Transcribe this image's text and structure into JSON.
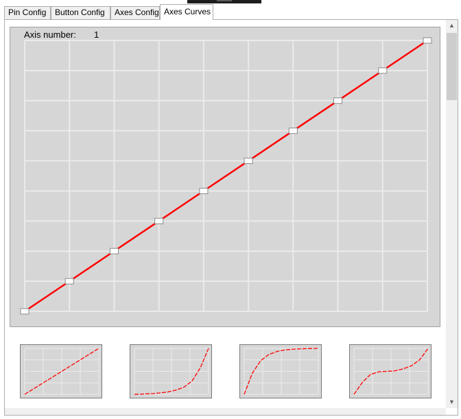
{
  "window": {
    "title": ""
  },
  "tabs": [
    {
      "label": "Pin Config",
      "active": false
    },
    {
      "label": "Button Config",
      "active": false
    },
    {
      "label": "Axes Config",
      "active": false
    },
    {
      "label": "Axes Curves",
      "active": true
    }
  ],
  "axis_info": {
    "label": "Axis number:",
    "value": "1"
  },
  "colors": {
    "curve": "#ff0000",
    "chart_background": "#d6d6d6",
    "grid": "#ebebeb",
    "handle_fill": "#ffffff",
    "panel_border": "#acacac"
  },
  "chart_data": {
    "type": "line",
    "title": "",
    "xlabel": "",
    "ylabel": "",
    "grid": true,
    "xlim": [
      0,
      9
    ],
    "ylim": [
      0,
      9
    ],
    "x": [
      0,
      1,
      2,
      3,
      4,
      5,
      6,
      7,
      8,
      9
    ],
    "series": [
      {
        "values": [
          0,
          1,
          2,
          3,
          4,
          5,
          6,
          7,
          8,
          9
        ],
        "handles": true
      }
    ]
  },
  "presets": [
    {
      "id": "linear",
      "icon": "linear-curve-icon",
      "x": [
        0,
        1,
        2,
        3,
        4,
        5,
        6,
        7,
        8,
        9
      ],
      "y": [
        0,
        1,
        2,
        3,
        4,
        5,
        6,
        7,
        8,
        9
      ]
    },
    {
      "id": "exponential",
      "icon": "exponential-curve-icon",
      "x": [
        0,
        1,
        2,
        3,
        4,
        5,
        6,
        7,
        8,
        9
      ],
      "y": [
        0,
        0.05,
        0.12,
        0.25,
        0.45,
        0.8,
        1.4,
        2.6,
        5.2,
        9
      ]
    },
    {
      "id": "logarithmic",
      "icon": "logarithmic-curve-icon",
      "x": [
        0,
        1,
        2,
        3,
        4,
        5,
        6,
        7,
        8,
        9
      ],
      "y": [
        0,
        4.2,
        6.6,
        7.8,
        8.4,
        8.7,
        8.85,
        8.92,
        8.97,
        9
      ]
    },
    {
      "id": "s-curve",
      "icon": "s-curve-icon",
      "x": [
        0,
        1,
        2,
        3,
        4,
        5,
        6,
        7,
        8,
        9
      ],
      "y": [
        0,
        2.3,
        3.9,
        4.4,
        4.5,
        4.6,
        5.0,
        5.6,
        6.8,
        9
      ]
    }
  ]
}
